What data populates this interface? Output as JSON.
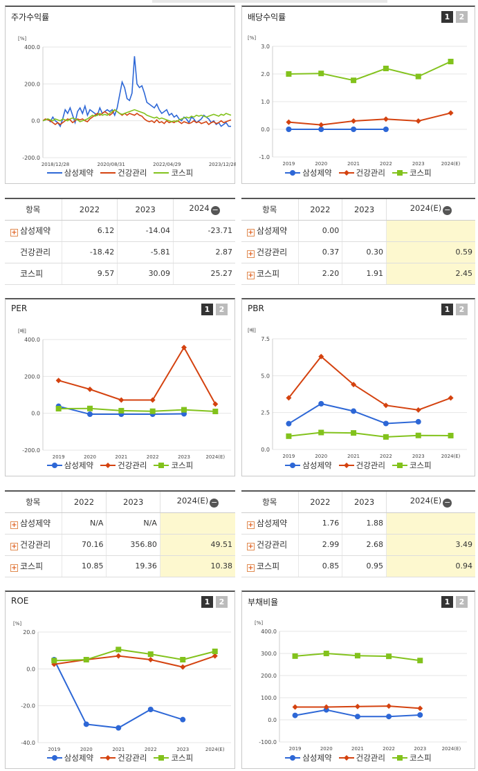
{
  "legend": [
    "삼성제약",
    "건강관리",
    "코스피"
  ],
  "colors": {
    "samsung": "#2d67d6",
    "health": "#d4420f",
    "kospi": "#82c21c"
  },
  "pages": {
    "on": "1",
    "off": "2"
  },
  "stock_panel": {
    "title": "주가수익률",
    "chart_data": {
      "type": "line",
      "unit": "[%]",
      "ylim": [
        -200,
        400
      ],
      "yticks": [
        "400.0",
        "200.0",
        "0.0",
        "-200.0"
      ],
      "xticks": [
        "2018/12/28",
        "2020/08/31",
        "2022/04/29",
        "2023/12/28"
      ],
      "series": [
        {
          "name": "삼성제약",
          "values": [
            0,
            5,
            10,
            -5,
            20,
            0,
            -10,
            -30,
            10,
            60,
            40,
            70,
            30,
            -10,
            50,
            70,
            40,
            80,
            30,
            60,
            50,
            40,
            30,
            70,
            40,
            50,
            60,
            50,
            60,
            30,
            70,
            140,
            210,
            180,
            120,
            110,
            150,
            350,
            200,
            180,
            190,
            150,
            100,
            90,
            80,
            70,
            90,
            60,
            40,
            50,
            60,
            30,
            40,
            20,
            30,
            10,
            0,
            20,
            10,
            -10,
            20,
            10,
            -10,
            0,
            10,
            30,
            20,
            10,
            -10,
            0,
            -20,
            -10,
            -30,
            -20,
            -10,
            -30,
            -30
          ]
        },
        {
          "name": "건강관리",
          "values": [
            0,
            10,
            5,
            0,
            -10,
            -20,
            -10,
            -20,
            -10,
            0,
            10,
            5,
            -10,
            0,
            10,
            5,
            10,
            0,
            -5,
            10,
            20,
            30,
            40,
            30,
            40,
            50,
            40,
            30,
            40,
            60,
            50,
            40,
            30,
            40,
            30,
            40,
            35,
            30,
            40,
            30,
            25,
            10,
            0,
            -5,
            0,
            -10,
            5,
            -10,
            -5,
            -15,
            0,
            -10,
            -5,
            -10,
            0,
            -5,
            -15,
            -5,
            -10,
            -15,
            -10,
            0,
            -10,
            -5,
            -15,
            -10,
            -5,
            -20,
            -10,
            -5,
            -15,
            -10,
            0,
            -10,
            -5,
            0,
            5
          ]
        },
        {
          "name": "코스피",
          "values": [
            0,
            5,
            10,
            5,
            0,
            10,
            5,
            0,
            10,
            5,
            0,
            10,
            15,
            10,
            5,
            -5,
            0,
            5,
            10,
            20,
            30,
            25,
            30,
            40,
            30,
            35,
            30,
            40,
            50,
            60,
            50,
            40,
            35,
            40,
            45,
            50,
            55,
            60,
            55,
            50,
            45,
            40,
            30,
            25,
            20,
            15,
            20,
            10,
            15,
            10,
            5,
            0,
            -5,
            0,
            -5,
            5,
            10,
            15,
            20,
            15,
            25,
            20,
            30,
            25,
            30,
            25,
            20,
            25,
            30,
            35,
            30,
            25,
            35,
            30,
            40,
            35,
            30
          ]
        }
      ]
    }
  },
  "dividend_panel": {
    "title": "배당수익률",
    "chart_data": {
      "type": "line",
      "unit": "[%]",
      "ylim": [
        -1,
        3
      ],
      "yticks": [
        "3.0",
        "2.0",
        "1.0",
        "0.0",
        "-1.0"
      ],
      "categories": [
        "2019",
        "2020",
        "2021",
        "2022",
        "2023",
        "2024(E)"
      ],
      "series": [
        {
          "name": "삼성제약",
          "values": [
            0.0,
            0.0,
            0.0,
            0.0,
            null,
            null
          ]
        },
        {
          "name": "건강관리",
          "values": [
            0.26,
            0.16,
            0.3,
            0.37,
            0.3,
            0.59
          ]
        },
        {
          "name": "코스피",
          "values": [
            2.0,
            2.02,
            1.77,
            2.2,
            1.91,
            2.45
          ]
        }
      ]
    }
  },
  "per_panel": {
    "title": "PER",
    "chart_data": {
      "type": "line",
      "unit": "[배]",
      "ylim": [
        -200,
        400
      ],
      "yticks": [
        "400.0",
        "200.0",
        "0.0",
        "-200.0"
      ],
      "categories": [
        "2019",
        "2020",
        "2021",
        "2022",
        "2023",
        "2024(E)"
      ],
      "series": [
        {
          "name": "삼성제약",
          "values": [
            38,
            -5,
            -5,
            -5,
            -3,
            null
          ]
        },
        {
          "name": "건강관리",
          "values": [
            178,
            130,
            72,
            72,
            357,
            50
          ]
        },
        {
          "name": "코스피",
          "values": [
            25,
            26,
            14,
            11,
            19,
            10
          ]
        }
      ]
    }
  },
  "pbr_panel": {
    "title": "PBR",
    "chart_data": {
      "type": "line",
      "unit": "[배]",
      "ylim": [
        0,
        7.5
      ],
      "yticks": [
        "7.5",
        "5.0",
        "2.5",
        "0.0"
      ],
      "categories": [
        "2019",
        "2020",
        "2021",
        "2022",
        "2023",
        "2024(E)"
      ],
      "series": [
        {
          "name": "삼성제약",
          "values": [
            1.75,
            3.1,
            2.6,
            1.76,
            1.88,
            null
          ]
        },
        {
          "name": "건강관리",
          "values": [
            3.5,
            6.3,
            4.4,
            2.99,
            2.68,
            3.49
          ]
        },
        {
          "name": "코스피",
          "values": [
            0.9,
            1.15,
            1.12,
            0.85,
            0.95,
            0.94
          ]
        }
      ]
    }
  },
  "roe_panel": {
    "title": "ROE",
    "chart_data": {
      "type": "line",
      "unit": "[%]",
      "ylim": [
        -40,
        20
      ],
      "yticks": [
        "20.0",
        "0.0",
        "-20.0",
        "-40.0"
      ],
      "categories": [
        "2019",
        "2020",
        "2021",
        "2022",
        "2023",
        "2024(E)"
      ],
      "series": [
        {
          "name": "삼성제약",
          "values": [
            5,
            -30,
            -32,
            -22,
            -27.5,
            null
          ]
        },
        {
          "name": "건강관리",
          "values": [
            2.5,
            5,
            7,
            5,
            1,
            7
          ]
        },
        {
          "name": "코스피",
          "values": [
            4.5,
            5,
            10.5,
            8,
            5,
            9.5
          ]
        }
      ]
    }
  },
  "debt_panel": {
    "title": "부채비율",
    "chart_data": {
      "type": "line",
      "unit": "[%]",
      "ylim": [
        -100,
        400
      ],
      "yticks": [
        "400.0",
        "300.0",
        "200.0",
        "100.0",
        "0.0",
        "-100.0"
      ],
      "categories": [
        "2019",
        "2020",
        "2021",
        "2022",
        "2023",
        "2024(E)"
      ],
      "series": [
        {
          "name": "삼성제약",
          "values": [
            20,
            45,
            15,
            15,
            22,
            null
          ]
        },
        {
          "name": "건강관리",
          "values": [
            58,
            58,
            60,
            62,
            52,
            null
          ]
        },
        {
          "name": "코스피",
          "values": [
            288,
            300,
            290,
            287,
            268,
            null
          ]
        }
      ]
    }
  },
  "table_stock": {
    "headers": [
      "항목",
      "2022",
      "2023",
      "2024"
    ],
    "rows": [
      {
        "name": "삼성제약",
        "v": [
          "6.12",
          "-14.04",
          "-23.71"
        ]
      },
      {
        "name": "건강관리",
        "v": [
          "-18.42",
          "-5.81",
          "2.87"
        ]
      },
      {
        "name": "코스피",
        "v": [
          "9.57",
          "30.09",
          "25.27"
        ]
      }
    ]
  },
  "table_dividend": {
    "headers": [
      "항목",
      "2022",
      "2023",
      "2024(E)"
    ],
    "rows": [
      {
        "name": "삼성제약",
        "v": [
          "0.00",
          "",
          ""
        ]
      },
      {
        "name": "건강관리",
        "v": [
          "0.37",
          "0.30",
          "0.59"
        ]
      },
      {
        "name": "코스피",
        "v": [
          "2.20",
          "1.91",
          "2.45"
        ]
      }
    ]
  },
  "table_per": {
    "headers": [
      "항목",
      "2022",
      "2023",
      "2024(E)"
    ],
    "rows": [
      {
        "name": "삼성제약",
        "v": [
          "N/A",
          "N/A",
          ""
        ]
      },
      {
        "name": "건강관리",
        "v": [
          "70.16",
          "356.80",
          "49.51"
        ]
      },
      {
        "name": "코스피",
        "v": [
          "10.85",
          "19.36",
          "10.38"
        ]
      }
    ]
  },
  "table_pbr": {
    "headers": [
      "항목",
      "2022",
      "2023",
      "2024(E)"
    ],
    "rows": [
      {
        "name": "삼성제약",
        "v": [
          "1.76",
          "1.88",
          ""
        ]
      },
      {
        "name": "건강관리",
        "v": [
          "2.99",
          "2.68",
          "3.49"
        ]
      },
      {
        "name": "코스피",
        "v": [
          "0.85",
          "0.95",
          "0.94"
        ]
      }
    ]
  }
}
